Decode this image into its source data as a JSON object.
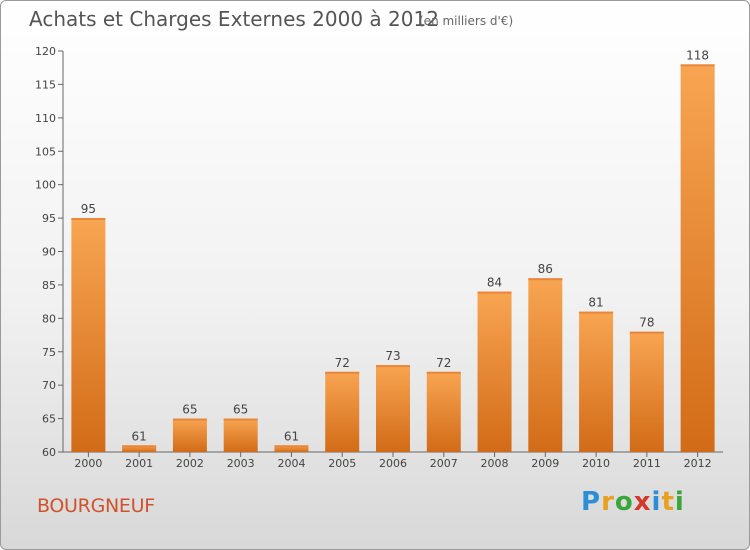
{
  "title": "Achats et Charges Externes 2000 à 2012",
  "subtitle": "(en milliers d'€)",
  "location": "BOURGNEUF",
  "logo_text": "Proxiti",
  "colors": {
    "bar_light": "#f8a552",
    "bar_dark": "#d26b17",
    "city": "#d0522a"
  },
  "chart_data": {
    "type": "bar",
    "title": "Achats et Charges Externes 2000 à 2012",
    "subtitle": "(en milliers d'€)",
    "categories": [
      "2000",
      "2001",
      "2002",
      "2003",
      "2004",
      "2005",
      "2006",
      "2007",
      "2008",
      "2009",
      "2010",
      "2011",
      "2012"
    ],
    "values": [
      95,
      61,
      65,
      65,
      61,
      72,
      73,
      72,
      84,
      86,
      81,
      78,
      118
    ],
    "ylim": [
      60,
      120
    ],
    "yticks": [
      60,
      65,
      70,
      75,
      80,
      85,
      90,
      95,
      100,
      105,
      110,
      115,
      120
    ],
    "grid": false,
    "legend": "none"
  }
}
